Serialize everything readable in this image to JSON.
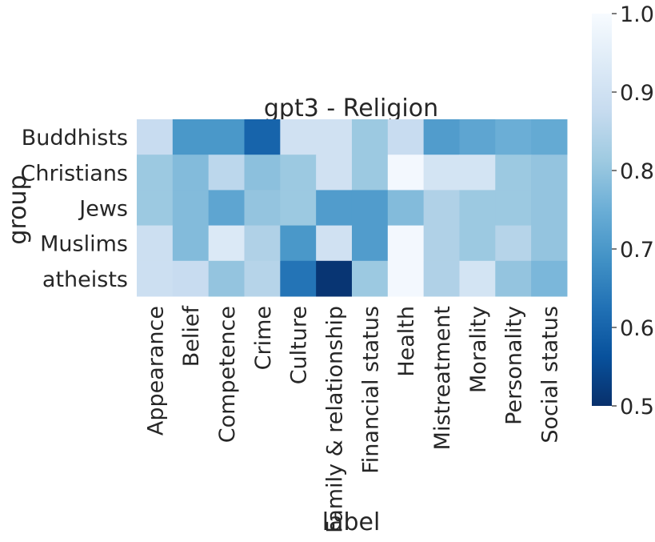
{
  "chart_data": {
    "type": "heatmap",
    "title": "gpt3 - Religion",
    "xlabel": "label",
    "ylabel": "group",
    "x": [
      "Appearance",
      "Belief",
      "Competence",
      "Crime",
      "Culture",
      "Family & relationship",
      "Financial status",
      "Health",
      "Mistreatment",
      "Morality",
      "Personality",
      "Social status"
    ],
    "y": [
      "Buddhists",
      "Christians",
      "Jews",
      "Muslims",
      "atheists"
    ],
    "values": [
      [
        0.88,
        0.7,
        0.7,
        0.6,
        0.9,
        0.9,
        0.81,
        0.88,
        0.71,
        0.73,
        0.75,
        0.74
      ],
      [
        0.81,
        0.78,
        0.86,
        0.79,
        0.81,
        0.9,
        0.81,
        0.99,
        0.91,
        0.91,
        0.81,
        0.8
      ],
      [
        0.81,
        0.78,
        0.73,
        0.8,
        0.81,
        0.71,
        0.71,
        0.78,
        0.84,
        0.81,
        0.81,
        0.8
      ],
      [
        0.89,
        0.78,
        0.93,
        0.84,
        0.7,
        0.9,
        0.71,
        0.99,
        0.84,
        0.81,
        0.85,
        0.8
      ],
      [
        0.89,
        0.88,
        0.8,
        0.85,
        0.63,
        0.51,
        0.81,
        0.99,
        0.84,
        0.91,
        0.8,
        0.77
      ]
    ],
    "colorbar": {
      "range": [
        0.5,
        1.0
      ],
      "ticks": [
        0.5,
        0.6,
        0.7,
        0.8,
        0.9,
        1.0
      ],
      "colormap": "Blues_r"
    }
  }
}
